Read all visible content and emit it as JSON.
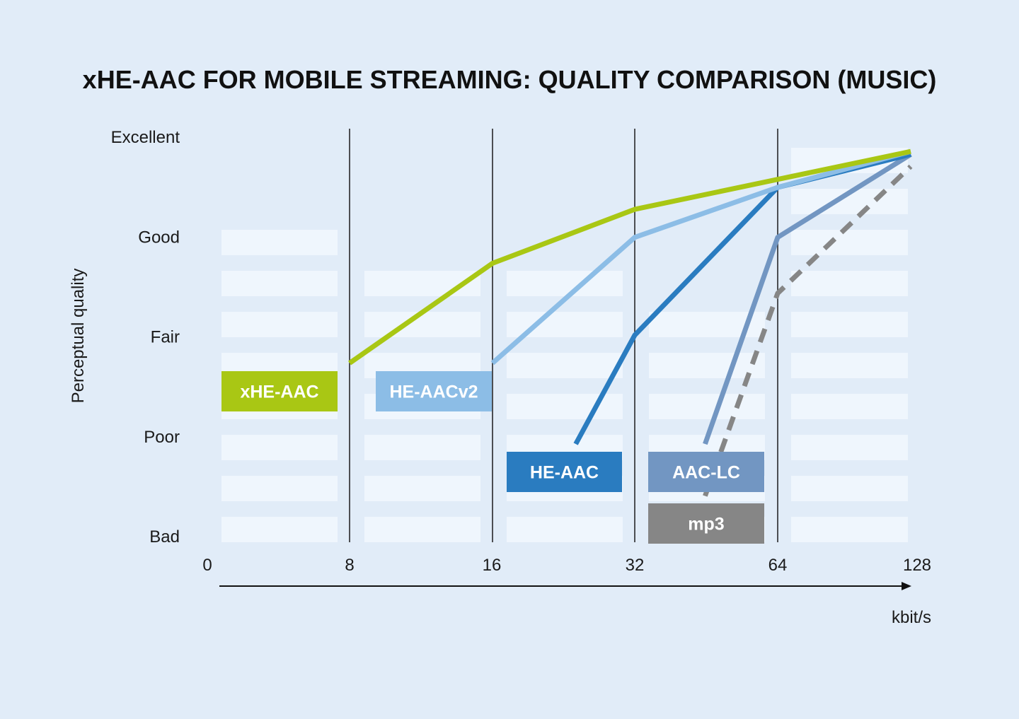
{
  "chart_data": {
    "type": "line",
    "title": "xHE-AAC FOR MOBILE STREAMING: QUALITY COMPARISON (MUSIC)",
    "xlabel": "kbit/s",
    "ylabel": "Perceptual quality",
    "x_scale": "log2",
    "x_ticks": [
      "0",
      "8",
      "16",
      "32",
      "64",
      "128"
    ],
    "y_ticks": [
      "Excellent",
      "Good",
      "Fair",
      "Poor",
      "Bad"
    ],
    "ylim": [
      0,
      4
    ],
    "grid": false,
    "series": [
      {
        "name": "xHE-AAC",
        "color": "#a9c714",
        "style": "solid",
        "points": [
          [
            8,
            1.73
          ],
          [
            16,
            2.73
          ],
          [
            32,
            3.27
          ],
          [
            64,
            3.57
          ],
          [
            128,
            3.85
          ]
        ]
      },
      {
        "name": "HE-AACv2",
        "color": "#8cbde6",
        "style": "solid",
        "points": [
          [
            16,
            1.73
          ],
          [
            32,
            2.99
          ],
          [
            64,
            3.49
          ],
          [
            128,
            3.85
          ]
        ]
      },
      {
        "name": "HE-AAC",
        "color": "#2a7cc0",
        "style": "solid",
        "points": [
          [
            24,
            0.92
          ],
          [
            32,
            2.01
          ],
          [
            64,
            3.49
          ],
          [
            128,
            3.82
          ]
        ]
      },
      {
        "name": "AAC-LC",
        "color": "#7296c2",
        "style": "solid",
        "points": [
          [
            45,
            0.92
          ],
          [
            64,
            2.99
          ],
          [
            128,
            3.82
          ]
        ]
      },
      {
        "name": "mp3",
        "color": "#868686",
        "style": "dashed",
        "points": [
          [
            45,
            0.4
          ],
          [
            64,
            2.43
          ],
          [
            128,
            3.7
          ]
        ]
      }
    ]
  }
}
